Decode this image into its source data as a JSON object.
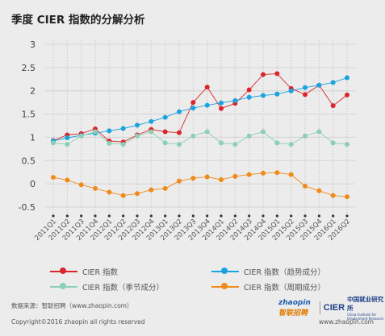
{
  "title": "季度 CIER 指数的分解分析",
  "chart_data": {
    "type": "line",
    "categories": [
      "2011Q1",
      "2011Q2",
      "2011Q3",
      "2011Q4",
      "2012Q1",
      "2012Q2",
      "2012Q3",
      "2012Q4",
      "2013Q1",
      "2013Q2",
      "2013Q3",
      "2013Q4",
      "2014Q1",
      "2014Q2",
      "2014Q3",
      "2014Q4",
      "2015Q1",
      "2015Q2",
      "2015Q3",
      "2015Q4",
      "2016Q1",
      "2016Q2"
    ],
    "yticks": [
      "3",
      "2.5",
      "2",
      "1.5",
      "1",
      "0.5",
      "0",
      "-0.5"
    ],
    "ylim": [
      -0.5,
      3
    ],
    "grid": true,
    "legend_position": "bottom",
    "series": [
      {
        "name": "CIER 指数",
        "color": "#d9262c",
        "values": [
          0.93,
          1.05,
          1.08,
          1.18,
          0.92,
          0.9,
          1.05,
          1.17,
          1.12,
          1.1,
          1.75,
          2.08,
          1.62,
          1.73,
          2.02,
          2.35,
          2.37,
          2.05,
          1.92,
          2.12,
          1.68,
          1.91
        ]
      },
      {
        "name": "CIER 指数（趋势成分）",
        "color": "#1aa3df",
        "values": [
          0.92,
          0.99,
          1.04,
          1.09,
          1.14,
          1.19,
          1.26,
          1.34,
          1.43,
          1.55,
          1.63,
          1.69,
          1.74,
          1.79,
          1.86,
          1.9,
          1.93,
          2.0,
          2.07,
          2.12,
          2.18,
          2.28
        ]
      },
      {
        "name": "CIER 指数（季节成分）",
        "color": "#8ccfb5",
        "values": [
          0.88,
          0.85,
          1.03,
          1.12,
          0.87,
          0.85,
          1.03,
          1.12,
          0.88,
          0.85,
          1.03,
          1.12,
          0.88,
          0.85,
          1.03,
          1.12,
          0.88,
          0.85,
          1.03,
          1.12,
          0.88,
          0.85
        ]
      },
      {
        "name": "CIER 指数（周期成分）",
        "color": "#f08a19",
        "values": [
          0.14,
          0.08,
          -0.02,
          -0.1,
          -0.18,
          -0.25,
          -0.21,
          -0.13,
          -0.1,
          0.06,
          0.12,
          0.15,
          0.09,
          0.16,
          0.2,
          0.23,
          0.24,
          0.2,
          -0.05,
          -0.15,
          -0.25,
          -0.28
        ]
      }
    ]
  },
  "footer": {
    "source": "数据来源：智联招聘（www.zhaopin.com）",
    "copyright": "Copyright©2016 zhaopin all rights reserved",
    "site": "www.zhaopin.com",
    "logo_zhaopin": "zhaopin",
    "logo_zhaopin_sub": "智联招聘",
    "logo_cier": "CIER",
    "logo_cier_cn": "中国就业研究所",
    "logo_cier_en": "China Institute for Employment Research"
  }
}
